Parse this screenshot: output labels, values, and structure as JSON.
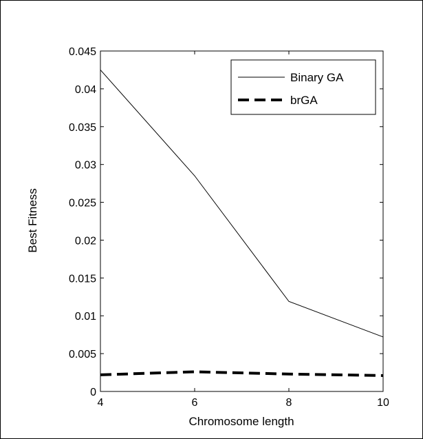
{
  "chart_data": {
    "type": "line",
    "xlabel": "Chromosome length",
    "ylabel": "Best Fitness",
    "xlim": [
      4,
      10
    ],
    "ylim": [
      0,
      0.045
    ],
    "xticks": [
      4,
      6,
      8,
      10
    ],
    "xtick_labels": [
      "4",
      "6",
      "8",
      "10"
    ],
    "yticks": [
      0,
      0.005,
      0.01,
      0.015,
      0.02,
      0.025,
      0.03,
      0.035,
      0.04,
      0.045
    ],
    "ytick_labels": [
      "0",
      "0.005",
      "0.01",
      "0.015",
      "0.02",
      "0.025",
      "0.03",
      "0.035",
      "0.04",
      "0.045"
    ],
    "grid": false,
    "legend_position": "top-right",
    "series": [
      {
        "name": "Binary GA",
        "style": "solid",
        "color": "#000000",
        "x": [
          4,
          6,
          8,
          10
        ],
        "y": [
          0.0425,
          0.0285,
          0.0119,
          0.0072
        ]
      },
      {
        "name": "brGA",
        "style": "dashed",
        "color": "#000000",
        "x": [
          4,
          6,
          8,
          10
        ],
        "y": [
          0.0022,
          0.0026,
          0.0023,
          0.0021
        ]
      }
    ]
  }
}
